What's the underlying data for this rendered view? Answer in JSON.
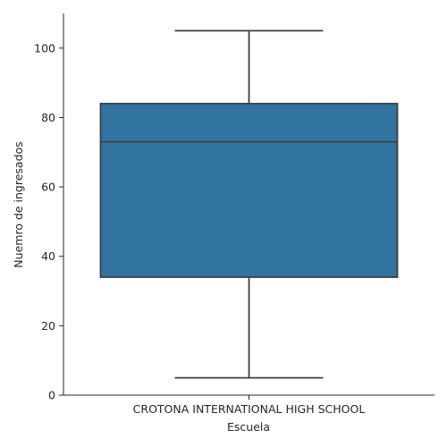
{
  "chart_data": {
    "type": "box",
    "xlabel": "Escuela",
    "ylabel": "Nuemro de ingresados",
    "categories": [
      "CROTONA INTERNATIONAL HIGH SCHOOL"
    ],
    "boxes": [
      {
        "category": "CROTONA INTERNATIONAL HIGH SCHOOL",
        "whisker_low": 5,
        "q1": 34,
        "median": 73,
        "q3": 84,
        "whisker_high": 105
      }
    ],
    "ylim": [
      0,
      110
    ],
    "yticks": [
      0,
      20,
      40,
      60,
      80,
      100
    ],
    "grid": false,
    "colors": {
      "box_fill": "#3274a1",
      "line": "#3f3f3f",
      "axis": "#262626"
    }
  }
}
